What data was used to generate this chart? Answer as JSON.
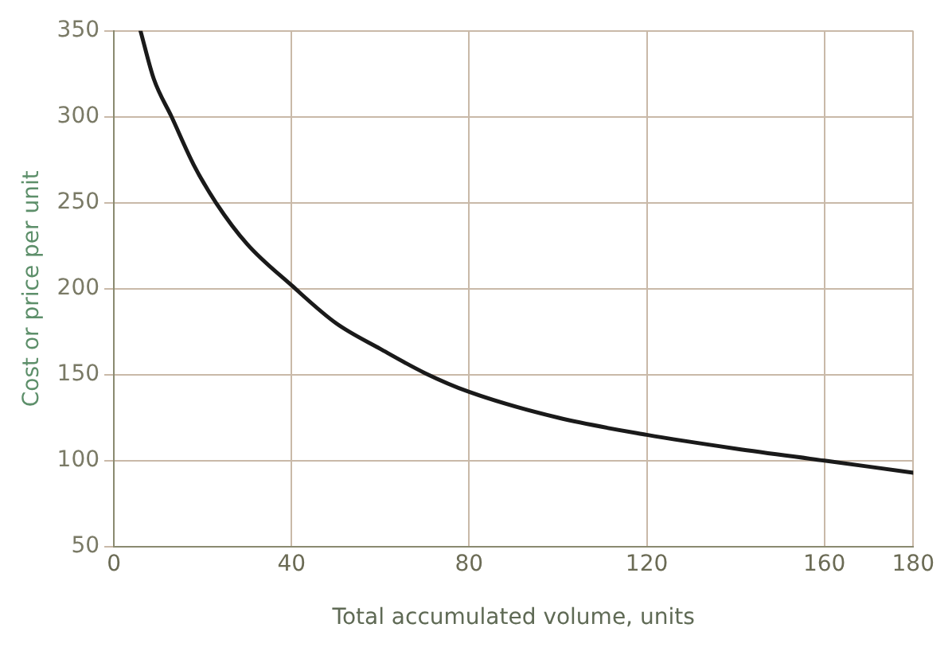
{
  "chart_data": {
    "type": "line",
    "xlabel": "Total accumulated volume, units",
    "ylabel": "Cost or price per unit",
    "x": [
      6,
      9,
      13,
      18,
      23,
      30,
      40,
      50,
      60,
      70,
      80,
      100,
      120,
      140,
      160,
      180
    ],
    "series": [
      {
        "color": "#1a1a1a",
        "values": [
          350,
          322,
          300,
          272,
          250,
          226,
          202,
          180,
          165,
          151,
          140,
          125,
          115,
          107,
          100,
          93
        ]
      }
    ],
    "xlim": [
      0,
      180
    ],
    "xticks": [
      0,
      40,
      80,
      120,
      160,
      180
    ],
    "ylim": [
      50,
      350
    ],
    "yticks": [
      50,
      100,
      150,
      200,
      250,
      300,
      350
    ],
    "grid": true,
    "marker": "none",
    "line_style": "solid",
    "legend": false
  }
}
